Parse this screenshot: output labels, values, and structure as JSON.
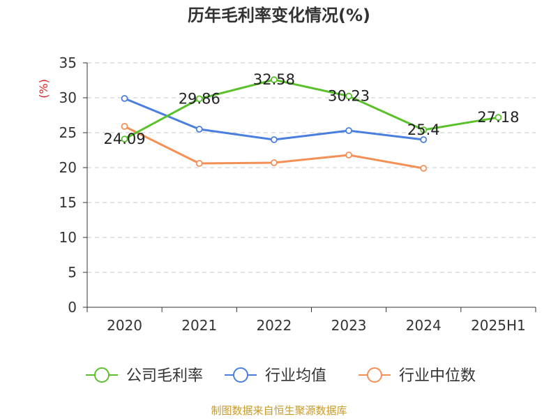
{
  "chart_data": {
    "type": "line",
    "title": "历年毛利率变化情况(%)",
    "ylabel": "(%)",
    "xlabel": "",
    "categories": [
      "2020",
      "2021",
      "2022",
      "2023",
      "2024",
      "2025H1"
    ],
    "ylim": [
      0,
      35
    ],
    "yticks": [
      0,
      5,
      10,
      15,
      20,
      25,
      30,
      35
    ],
    "grid": true,
    "legend_position": "bottom",
    "series": [
      {
        "name": "公司毛利率",
        "color": "#5bc12b",
        "values": [
          24.09,
          29.86,
          32.58,
          30.23,
          25.4,
          27.18
        ],
        "labels": [
          "24.09",
          "29.86",
          "32.58",
          "30.23",
          "25.4",
          "27.18"
        ]
      },
      {
        "name": "行业均值",
        "color": "#4a7fde",
        "values": [
          29.9,
          25.5,
          24.0,
          25.3,
          24.0,
          null
        ],
        "labels": null
      },
      {
        "name": "行业中位数",
        "color": "#f39056",
        "values": [
          25.9,
          20.6,
          20.7,
          21.8,
          19.9,
          null
        ],
        "labels": null
      }
    ]
  },
  "source": "制图数据来自恒生聚源数据库"
}
